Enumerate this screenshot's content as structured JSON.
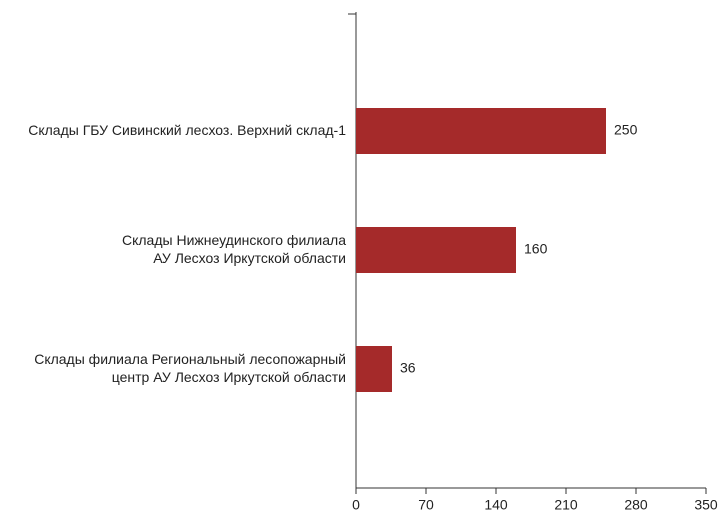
{
  "chart_data": {
    "type": "bar",
    "orientation": "horizontal",
    "categories": [
      "Склады ГБУ Сивинский лесхоз. Верхний склад-1",
      "Склады Нижнеудинского филиала\nАУ Лесхоз Иркутской области",
      "Склады филиала Региональный лесопожарный\nцентр АУ Лесхоз Иркутской области"
    ],
    "values": [
      250,
      160,
      36
    ],
    "color": "#a52a2a",
    "xlim": [
      0,
      350
    ],
    "xticks": [
      0,
      70,
      140,
      210,
      280,
      350
    ],
    "grid": false
  }
}
